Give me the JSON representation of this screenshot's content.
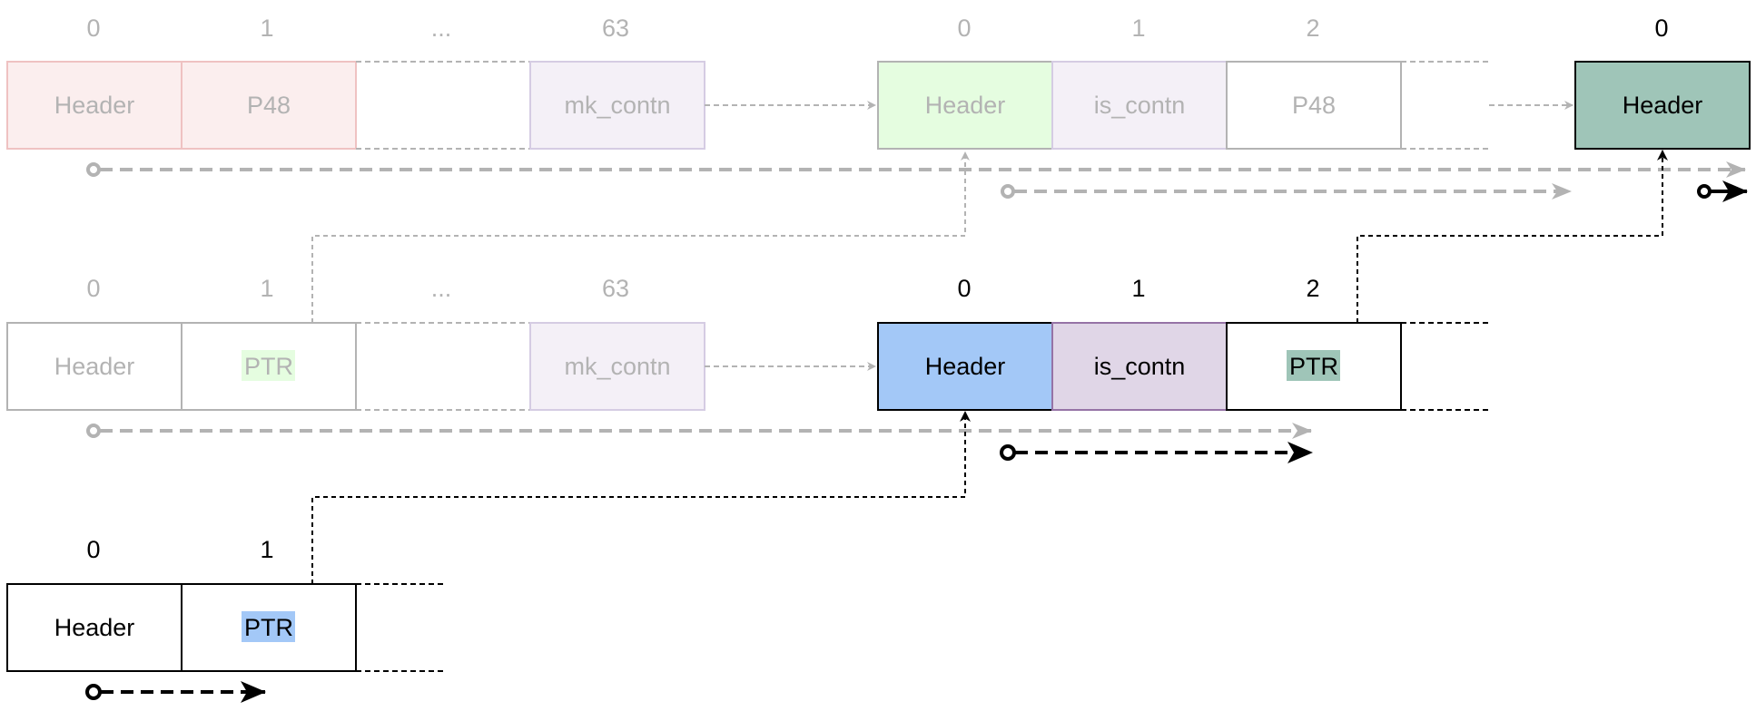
{
  "colors": {
    "faded_text": "#b3b3b3",
    "faded_stroke": "#b3b3b3",
    "dark": "#000000",
    "pink_fill": "#fbeeee",
    "pink_stroke": "#efc2c2",
    "lavender_fill": "#f4f0f7",
    "lavender_stroke": "#d5cce3",
    "light_green_fill": "#e5fde0",
    "blue_fill": "#a3c8f7",
    "mauve_fill": "#e0d6e7",
    "mauve_stroke": "#9673a6",
    "teal_fill": "#9fc5b8"
  },
  "row1": {
    "left": {
      "indices": [
        "0",
        "1",
        "...",
        "63"
      ],
      "cells": [
        "Header",
        "P48",
        "",
        "mk_contn"
      ]
    },
    "mid": {
      "indices": [
        "0",
        "1",
        "2"
      ],
      "cells": [
        "Header",
        "is_contn",
        "P48"
      ]
    },
    "right": {
      "indices": [
        "0"
      ],
      "cells": [
        "Header"
      ]
    }
  },
  "row2": {
    "left": {
      "indices": [
        "0",
        "1",
        "...",
        "63"
      ],
      "cells": [
        "Header",
        "PTR",
        "",
        "mk_contn"
      ]
    },
    "mid": {
      "indices": [
        "0",
        "1",
        "2"
      ],
      "cells": [
        "Header",
        "is_contn",
        "PTR"
      ]
    }
  },
  "row3": {
    "left": {
      "indices": [
        "0",
        "1"
      ],
      "cells": [
        "Header",
        "PTR"
      ]
    }
  }
}
